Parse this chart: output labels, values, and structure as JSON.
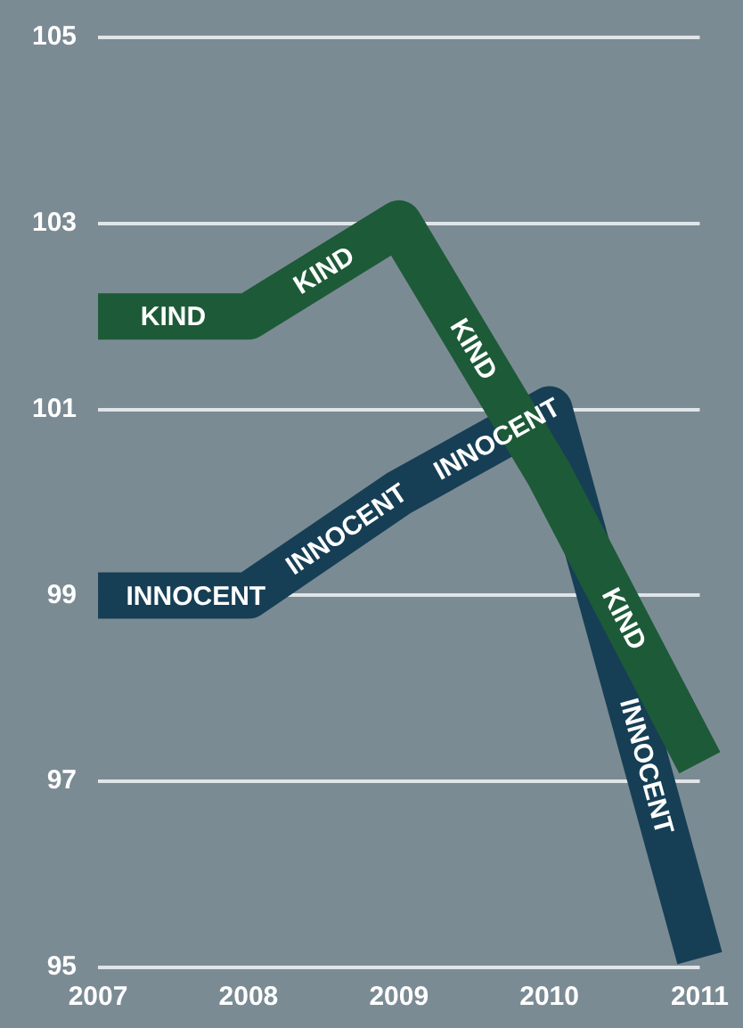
{
  "chart_data": {
    "type": "line",
    "categories": [
      "2007",
      "2008",
      "2009",
      "2010",
      "2011"
    ],
    "series": [
      {
        "name": "KIND",
        "color": "#1d5a38",
        "values": [
          102,
          102,
          103,
          100.3,
          97.2
        ]
      },
      {
        "name": "INNOCENT",
        "color": "#163f55",
        "values": [
          99,
          99,
          100.1,
          101,
          95.1
        ]
      }
    ],
    "ylim": [
      95,
      105
    ],
    "yticks": [
      95,
      97,
      99,
      101,
      103,
      105
    ],
    "grid": "y",
    "legend": false,
    "marker": "none",
    "line_style": "solid"
  }
}
